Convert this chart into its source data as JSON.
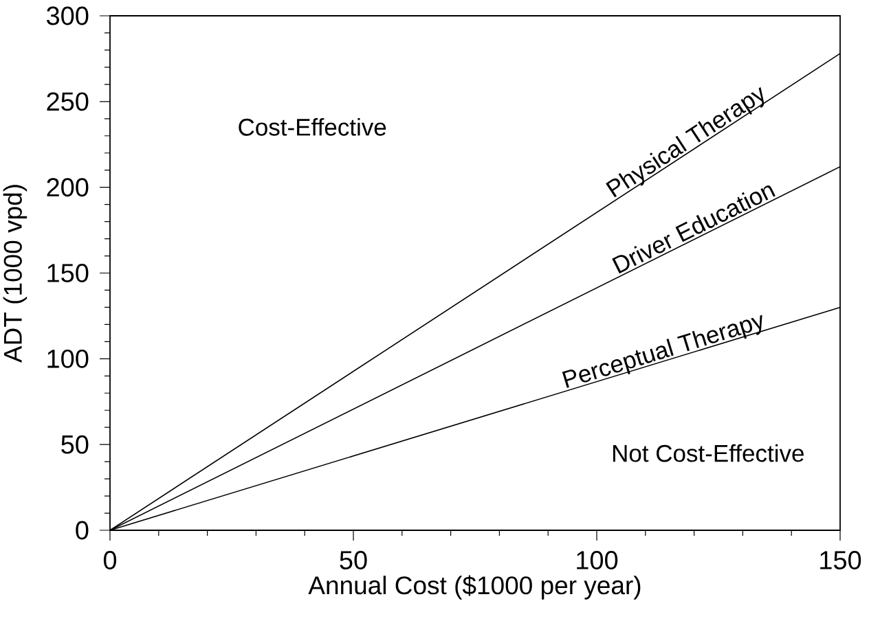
{
  "chart_data": {
    "type": "line",
    "xlabel": "Annual Cost ($1000 per year)",
    "ylabel": "ADT (1000 vpd)",
    "x": [
      0,
      150
    ],
    "series": [
      {
        "name": "Physical Therapy",
        "color": "#000000",
        "values": [
          0,
          278
        ]
      },
      {
        "name": "Driver Education",
        "color": "#000000",
        "values": [
          0,
          212
        ]
      },
      {
        "name": "Perceptual Therapy",
        "color": "#000000",
        "values": [
          0,
          130
        ]
      }
    ],
    "annotations": [
      "Cost-Effective",
      "Not Cost-Effective"
    ],
    "xlim": [
      0,
      150
    ],
    "ylim": [
      0,
      300
    ],
    "xticks": [
      0,
      {
        "value": 10,
        "label": null
      },
      {
        "value": 20,
        "label": null
      },
      {
        "value": 30,
        "label": null
      },
      {
        "value": 40,
        "label": null
      },
      50,
      {
        "value": 60,
        "label": null
      },
      {
        "value": 70,
        "label": null
      },
      {
        "value": 80,
        "label": null
      },
      {
        "value": 90,
        "label": null
      },
      100,
      {
        "value": 110,
        "label": null
      },
      {
        "value": 120,
        "label": null
      },
      {
        "value": 130,
        "label": null
      },
      {
        "value": 140,
        "label": null
      },
      150
    ],
    "yticks": [
      0,
      {
        "value": 10,
        "label": null
      },
      {
        "value": 20,
        "label": null
      },
      {
        "value": 30,
        "label": null
      },
      {
        "value": 40,
        "label": null
      },
      50,
      {
        "value": 60,
        "label": null
      },
      {
        "value": 70,
        "label": null
      },
      {
        "value": 80,
        "label": null
      },
      {
        "value": 90,
        "label": null
      },
      100,
      {
        "value": 110,
        "label": null
      },
      {
        "value": 120,
        "label": null
      },
      {
        "value": 130,
        "label": null
      },
      {
        "value": 140,
        "label": null
      },
      150,
      {
        "value": 160,
        "label": null
      },
      {
        "value": 170,
        "label": null
      },
      {
        "value": 180,
        "label": null
      },
      {
        "value": 190,
        "label": null
      },
      200,
      {
        "value": 210,
        "label": null
      },
      {
        "value": 220,
        "label": null
      },
      {
        "value": 230,
        "label": null
      },
      {
        "value": 240,
        "label": null
      },
      250,
      {
        "value": 260,
        "label": null
      },
      {
        "value": 270,
        "label": null
      },
      {
        "value": 280,
        "label": null
      },
      {
        "value": 290,
        "label": null
      },
      300
    ],
    "line_style": "solid"
  }
}
